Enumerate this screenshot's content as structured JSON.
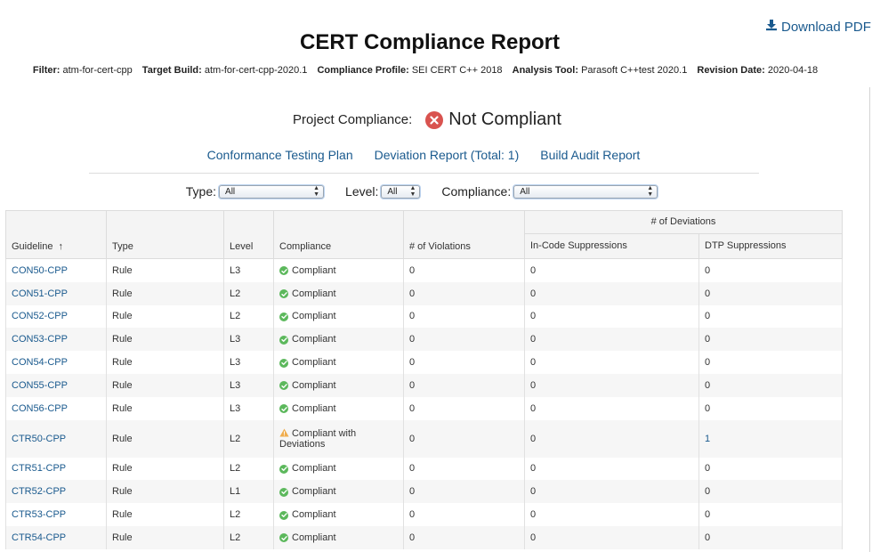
{
  "header": {
    "download_label": "Download PDF",
    "title": "CERT Compliance Report",
    "meta": [
      {
        "key": "Filter:",
        "value": "atm-for-cert-cpp"
      },
      {
        "key": "Target Build:",
        "value": "atm-for-cert-cpp-2020.1"
      },
      {
        "key": "Compliance Profile:",
        "value": "SEI CERT C++ 2018"
      },
      {
        "key": "Analysis Tool:",
        "value": "Parasoft C++test 2020.1"
      },
      {
        "key": "Revision Date:",
        "value": "2020-04-18"
      }
    ]
  },
  "project": {
    "label": "Project Compliance:",
    "status": "Not Compliant",
    "status_color": "#d9534f"
  },
  "links": {
    "plan": "Conformance Testing Plan",
    "deviation": "Deviation Report (Total: 1)",
    "audit": "Build Audit Report"
  },
  "filters": {
    "type_label": "Type:",
    "type_value": "All",
    "level_label": "Level:",
    "level_value": "All",
    "compliance_label": "Compliance:",
    "compliance_value": "All"
  },
  "table": {
    "headers": {
      "guideline": "Guideline",
      "type": "Type",
      "level": "Level",
      "compliance": "Compliance",
      "violations": "# of Violations",
      "deviations_group": "# of Deviations",
      "in_code": "In-Code Suppressions",
      "dtp": "DTP Suppressions"
    },
    "rows": [
      {
        "guideline": "CON50-CPP",
        "type": "Rule",
        "level": "L3",
        "compliance": "Compliant",
        "status": "ok",
        "violations": "0",
        "in_code": "0",
        "dtp": "0"
      },
      {
        "guideline": "CON51-CPP",
        "type": "Rule",
        "level": "L2",
        "compliance": "Compliant",
        "status": "ok",
        "violations": "0",
        "in_code": "0",
        "dtp": "0"
      },
      {
        "guideline": "CON52-CPP",
        "type": "Rule",
        "level": "L2",
        "compliance": "Compliant",
        "status": "ok",
        "violations": "0",
        "in_code": "0",
        "dtp": "0"
      },
      {
        "guideline": "CON53-CPP",
        "type": "Rule",
        "level": "L3",
        "compliance": "Compliant",
        "status": "ok",
        "violations": "0",
        "in_code": "0",
        "dtp": "0"
      },
      {
        "guideline": "CON54-CPP",
        "type": "Rule",
        "level": "L3",
        "compliance": "Compliant",
        "status": "ok",
        "violations": "0",
        "in_code": "0",
        "dtp": "0"
      },
      {
        "guideline": "CON55-CPP",
        "type": "Rule",
        "level": "L3",
        "compliance": "Compliant",
        "status": "ok",
        "violations": "0",
        "in_code": "0",
        "dtp": "0"
      },
      {
        "guideline": "CON56-CPP",
        "type": "Rule",
        "level": "L3",
        "compliance": "Compliant",
        "status": "ok",
        "violations": "0",
        "in_code": "0",
        "dtp": "0"
      },
      {
        "guideline": "CTR50-CPP",
        "type": "Rule",
        "level": "L2",
        "compliance": "Compliant with Deviations",
        "status": "warn",
        "violations": "0",
        "in_code": "0",
        "dtp": "1"
      },
      {
        "guideline": "CTR51-CPP",
        "type": "Rule",
        "level": "L2",
        "compliance": "Compliant",
        "status": "ok",
        "violations": "0",
        "in_code": "0",
        "dtp": "0"
      },
      {
        "guideline": "CTR52-CPP",
        "type": "Rule",
        "level": "L1",
        "compliance": "Compliant",
        "status": "ok",
        "violations": "0",
        "in_code": "0",
        "dtp": "0"
      },
      {
        "guideline": "CTR53-CPP",
        "type": "Rule",
        "level": "L2",
        "compliance": "Compliant",
        "status": "ok",
        "violations": "0",
        "in_code": "0",
        "dtp": "0"
      },
      {
        "guideline": "CTR54-CPP",
        "type": "Rule",
        "level": "L2",
        "compliance": "Compliant",
        "status": "ok",
        "violations": "0",
        "in_code": "0",
        "dtp": "0"
      }
    ]
  },
  "colors": {
    "link": "#1a5a8e",
    "compliant": "#5cb85c",
    "warning": "#f0ad4e",
    "not_compliant": "#d9534f"
  }
}
